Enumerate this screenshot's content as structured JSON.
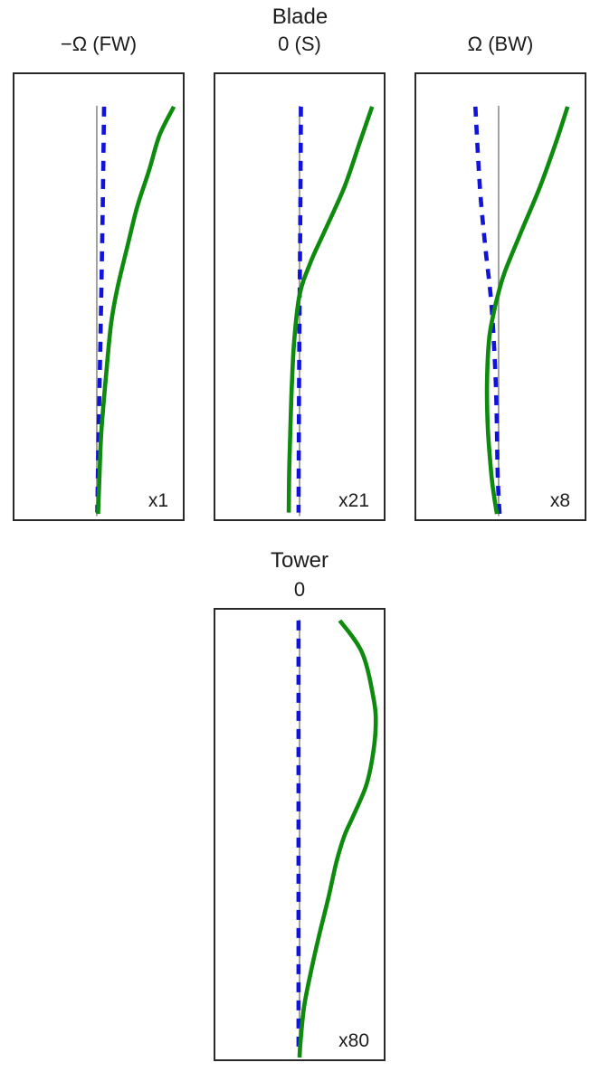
{
  "figure": {
    "blade_title": "Blade",
    "tower_title": "Tower",
    "background_color": "#ffffff",
    "frame_color": "#2a2a2a",
    "text_color": "#1c1c1c"
  },
  "chart_data": [
    {
      "type": "line",
      "group": "Blade",
      "subtitle": "−Ω (FW)",
      "annotation": "x1",
      "axes_visible": false,
      "frame": true,
      "coords": "x = fraction of panel width, y = fraction of panel height from top (tip at top, root at bottom)",
      "series": [
        {
          "name": "undeformed-reference-line",
          "role": "reference",
          "style": "solid",
          "color": "#9a9a9a",
          "points": [
            [
              0.489,
              0.071
            ],
            [
              0.489,
              0.993
            ]
          ]
        },
        {
          "name": "dashed-mode-shape",
          "role": "mode",
          "style": "dashed",
          "color": "#1212dd",
          "points": [
            [
              0.532,
              0.073
            ],
            [
              0.524,
              0.3
            ],
            [
              0.513,
              0.55
            ],
            [
              0.5,
              0.8
            ],
            [
              0.492,
              0.985
            ]
          ]
        },
        {
          "name": "solid-mode-shape",
          "role": "mode",
          "style": "solid",
          "color": "#0e8b0e",
          "points": [
            [
              0.947,
              0.073
            ],
            [
              0.862,
              0.137
            ],
            [
              0.798,
              0.218
            ],
            [
              0.729,
              0.298
            ],
            [
              0.676,
              0.379
            ],
            [
              0.612,
              0.48
            ],
            [
              0.574,
              0.56
            ],
            [
              0.543,
              0.681
            ],
            [
              0.516,
              0.802
            ],
            [
              0.505,
              0.903
            ],
            [
              0.497,
              0.988
            ]
          ]
        }
      ]
    },
    {
      "type": "line",
      "group": "Blade",
      "subtitle": "0 (S)",
      "annotation": "x21",
      "axes_visible": false,
      "frame": true,
      "coords": "x = fraction of panel width, y = fraction of panel height from top (tip at top, root at bottom)",
      "series": [
        {
          "name": "undeformed-reference-line",
          "role": "reference",
          "style": "solid",
          "color": "#9a9a9a",
          "points": [
            [
              0.5,
              0.071
            ],
            [
              0.5,
              0.993
            ]
          ]
        },
        {
          "name": "dashed-mode-shape",
          "role": "mode",
          "style": "dashed",
          "color": "#1212dd",
          "points": [
            [
              0.508,
              0.073
            ],
            [
              0.504,
              0.35
            ],
            [
              0.498,
              0.65
            ],
            [
              0.494,
              0.985
            ]
          ]
        },
        {
          "name": "solid-mode-shape",
          "role": "mode",
          "style": "solid",
          "color": "#0e8b0e",
          "points": [
            [
              0.931,
              0.073
            ],
            [
              0.858,
              0.153
            ],
            [
              0.766,
              0.254
            ],
            [
              0.646,
              0.355
            ],
            [
              0.565,
              0.423
            ],
            [
              0.5,
              0.496
            ],
            [
              0.468,
              0.601
            ],
            [
              0.454,
              0.702
            ],
            [
              0.445,
              0.802
            ],
            [
              0.438,
              0.903
            ],
            [
              0.436,
              0.985
            ]
          ]
        }
      ]
    },
    {
      "type": "line",
      "group": "Blade",
      "subtitle": "Ω (BW)",
      "annotation": "x8",
      "axes_visible": false,
      "frame": true,
      "coords": "x = fraction of panel width, y = fraction of panel height from top (tip at top, root at bottom)",
      "series": [
        {
          "name": "undeformed-reference-line",
          "role": "reference",
          "style": "solid",
          "color": "#9a9a9a",
          "points": [
            [
              0.489,
              0.071
            ],
            [
              0.489,
              0.993
            ]
          ]
        },
        {
          "name": "dashed-mode-shape",
          "role": "mode",
          "style": "dashed",
          "color": "#1212dd",
          "points": [
            [
              0.351,
              0.073
            ],
            [
              0.378,
              0.254
            ],
            [
              0.41,
              0.389
            ],
            [
              0.447,
              0.52
            ],
            [
              0.473,
              0.702
            ],
            [
              0.484,
              0.903
            ],
            [
              0.495,
              0.988
            ]
          ]
        },
        {
          "name": "solid-mode-shape",
          "role": "mode",
          "style": "solid",
          "color": "#0e8b0e",
          "points": [
            [
              0.899,
              0.073
            ],
            [
              0.83,
              0.153
            ],
            [
              0.734,
              0.254
            ],
            [
              0.622,
              0.355
            ],
            [
              0.527,
              0.443
            ],
            [
              0.489,
              0.49
            ],
            [
              0.455,
              0.545
            ],
            [
              0.431,
              0.601
            ],
            [
              0.42,
              0.702
            ],
            [
              0.426,
              0.802
            ],
            [
              0.447,
              0.903
            ],
            [
              0.463,
              0.95
            ],
            [
              0.479,
              0.988
            ]
          ]
        }
      ]
    },
    {
      "type": "line",
      "group": "Tower",
      "subtitle": "0",
      "annotation": "x80",
      "axes_visible": false,
      "frame": true,
      "coords": "x = fraction of panel width, y = fraction of panel height from top (top at top, base at bottom)",
      "series": [
        {
          "name": "undeformed-reference-line",
          "role": "reference",
          "style": "solid",
          "color": "#9a9a9a",
          "points": [
            [
              0.5,
              0.022
            ],
            [
              0.5,
              0.996
            ]
          ]
        },
        {
          "name": "dashed-mode-shape",
          "role": "mode",
          "style": "dashed",
          "color": "#1212dd",
          "points": [
            [
              0.494,
              0.024
            ],
            [
              0.494,
              0.99
            ]
          ]
        },
        {
          "name": "solid-mode-shape",
          "role": "mode",
          "style": "solid",
          "color": "#0e8b0e",
          "points": [
            [
              0.739,
              0.024
            ],
            [
              0.872,
              0.096
            ],
            [
              0.941,
              0.2
            ],
            [
              0.952,
              0.262
            ],
            [
              0.931,
              0.333
            ],
            [
              0.894,
              0.393
            ],
            [
              0.814,
              0.463
            ],
            [
              0.766,
              0.503
            ],
            [
              0.718,
              0.563
            ],
            [
              0.67,
              0.643
            ],
            [
              0.617,
              0.723
            ],
            [
              0.569,
              0.803
            ],
            [
              0.527,
              0.883
            ],
            [
              0.505,
              0.964
            ],
            [
              0.5,
              0.996
            ]
          ]
        }
      ]
    }
  ]
}
